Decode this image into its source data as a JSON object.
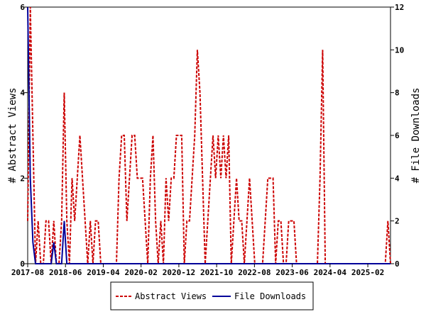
{
  "chart_data": {
    "type": "line",
    "title": "",
    "xlabel": "",
    "ylabel": "# Abstract Views",
    "y2label": "# File Downloads",
    "ylim": [
      0,
      6
    ],
    "y2lim": [
      0,
      12
    ],
    "yticks": [
      "0",
      "2",
      "4",
      "6"
    ],
    "y2ticks": [
      "0",
      "2",
      "4",
      "6",
      "8",
      "10",
      "12"
    ],
    "x_tick_labels": [
      "2017-08",
      "2018-06",
      "2019-04",
      "2020-02",
      "2020-12",
      "2021-10",
      "2022-08",
      "2023-06",
      "2024-04",
      "2025-02"
    ],
    "x_tick_months": [
      "2017-08",
      "2018-06",
      "2019-04",
      "2020-02",
      "2020-12",
      "2021-10",
      "2022-08",
      "2023-06",
      "2024-04",
      "2025-02"
    ],
    "x_range": [
      "2017-08",
      "2025-08"
    ],
    "grid": false,
    "legend_position": "bottom",
    "legend_title": "",
    "colors": {
      "abstract_views": "#cc0000",
      "file_downloads": "#000099"
    },
    "series": [
      {
        "name": "Abstract Views",
        "axis": "left",
        "style": "dashed",
        "values": [
          1,
          6,
          3,
          0,
          1,
          0,
          0,
          1,
          1,
          0,
          1,
          0,
          0,
          1,
          4,
          1,
          0,
          2,
          1,
          2,
          3,
          2,
          1,
          0,
          1,
          0,
          1,
          1,
          0,
          0,
          0,
          0,
          0,
          0,
          0,
          2,
          3,
          3,
          1,
          2,
          3,
          3,
          2,
          2,
          2,
          1,
          0,
          2,
          3,
          1,
          0,
          1,
          0,
          2,
          1,
          2,
          2,
          3,
          3,
          3,
          0,
          1,
          1,
          2,
          3,
          5,
          4,
          2,
          0,
          1,
          2,
          3,
          2,
          3,
          2,
          3,
          2,
          3,
          0,
          1,
          2,
          1,
          1,
          0,
          1,
          2,
          1,
          0,
          0,
          0,
          0,
          1,
          2,
          2,
          2,
          0,
          1,
          1,
          0,
          0,
          1,
          1,
          1,
          0,
          0,
          0,
          0,
          0,
          0,
          0,
          0,
          0,
          2,
          5,
          0,
          0,
          0,
          0,
          0,
          0,
          0,
          0,
          0,
          0,
          0,
          0,
          0,
          0,
          0,
          0,
          0,
          0,
          0,
          0,
          0,
          0,
          0,
          0,
          1,
          0
        ]
      },
      {
        "name": "File Downloads",
        "axis": "right",
        "style": "solid",
        "values": [
          12,
          4,
          1,
          0,
          0,
          0,
          0,
          0,
          0,
          0,
          1,
          0,
          0,
          0,
          2,
          0,
          0,
          0,
          0,
          0,
          0,
          0,
          0,
          0,
          0,
          0,
          0,
          0,
          0,
          0,
          0,
          0,
          0,
          0,
          0,
          0,
          0,
          0,
          0,
          0,
          0,
          0,
          0,
          0,
          0,
          0,
          0,
          0,
          0,
          0,
          0,
          0,
          0,
          0,
          0,
          0,
          0,
          0,
          0,
          0,
          0,
          0,
          0,
          0,
          0,
          0,
          0,
          0,
          0,
          0,
          0,
          0,
          0,
          0,
          0,
          0,
          0,
          0,
          0,
          0,
          0,
          0,
          0,
          0,
          0,
          0,
          0,
          0,
          0,
          0,
          0,
          0,
          0,
          0,
          0,
          0,
          0,
          0,
          0,
          0,
          0,
          0,
          0,
          0,
          0,
          0,
          0,
          0,
          0,
          0,
          0,
          0,
          0,
          0,
          0,
          0,
          0,
          0,
          0,
          0,
          0,
          0,
          0,
          0,
          0,
          0,
          0,
          0,
          0,
          0,
          0,
          0,
          0,
          0,
          0,
          0,
          0,
          0,
          0,
          0
        ]
      }
    ]
  }
}
